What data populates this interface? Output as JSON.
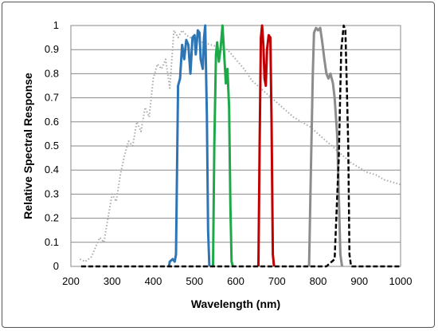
{
  "chart_data": {
    "type": "line",
    "title": "",
    "xlabel": "Wavelength (nm)",
    "ylabel": "Relative  Spectral Response",
    "xlim": [
      200,
      1000
    ],
    "ylim": [
      0,
      1
    ],
    "grid": "horizontal",
    "x_ticks": [
      "200",
      "300",
      "400",
      "500",
      "600",
      "700",
      "800",
      "900",
      "1000"
    ],
    "y_ticks": [
      "0",
      "0.1",
      "0.2",
      "0.3",
      "0.4",
      "0.5",
      "0.6",
      "0.7",
      "0.8",
      "0.9",
      "1"
    ],
    "series": [
      {
        "color": "#aaaaaa",
        "style": "dotted",
        "points": [
          [
            222,
            0.03
          ],
          [
            235,
            0.02
          ],
          [
            250,
            0.04
          ],
          [
            260,
            0.08
          ],
          [
            270,
            0.12
          ],
          [
            280,
            0.1
          ],
          [
            290,
            0.2
          ],
          [
            300,
            0.3
          ],
          [
            310,
            0.27
          ],
          [
            320,
            0.38
          ],
          [
            330,
            0.46
          ],
          [
            340,
            0.52
          ],
          [
            350,
            0.5
          ],
          [
            360,
            0.6
          ],
          [
            370,
            0.56
          ],
          [
            380,
            0.66
          ],
          [
            390,
            0.62
          ],
          [
            400,
            0.78
          ],
          [
            410,
            0.84
          ],
          [
            420,
            0.82
          ],
          [
            430,
            0.86
          ],
          [
            440,
            0.74
          ],
          [
            450,
            0.98
          ],
          [
            460,
            0.95
          ],
          [
            470,
            0.98
          ],
          [
            480,
            0.96
          ],
          [
            490,
            0.95
          ],
          [
            500,
            0.94
          ],
          [
            520,
            0.93
          ],
          [
            540,
            0.92
          ],
          [
            560,
            0.91
          ],
          [
            580,
            0.9
          ],
          [
            600,
            0.86
          ],
          [
            620,
            0.82
          ],
          [
            640,
            0.77
          ],
          [
            660,
            0.74
          ],
          [
            680,
            0.71
          ],
          [
            700,
            0.68
          ],
          [
            720,
            0.65
          ],
          [
            740,
            0.62
          ],
          [
            760,
            0.6
          ],
          [
            780,
            0.58
          ],
          [
            800,
            0.55
          ],
          [
            820,
            0.52
          ],
          [
            840,
            0.49
          ],
          [
            860,
            0.46
          ],
          [
            880,
            0.43
          ],
          [
            900,
            0.41
          ],
          [
            920,
            0.39
          ],
          [
            940,
            0.38
          ],
          [
            960,
            0.36
          ],
          [
            980,
            0.35
          ],
          [
            1000,
            0.34
          ]
        ]
      },
      {
        "color": "#2e75b6",
        "style": "solid",
        "points": [
          [
            438,
            0
          ],
          [
            440,
            0.02
          ],
          [
            447,
            0.03
          ],
          [
            452,
            0.02
          ],
          [
            455,
            0.05
          ],
          [
            460,
            0.75
          ],
          [
            465,
            0.78
          ],
          [
            470,
            0.92
          ],
          [
            475,
            0.86
          ],
          [
            480,
            0.94
          ],
          [
            485,
            0.92
          ],
          [
            490,
            0.8
          ],
          [
            495,
            0.95
          ],
          [
            500,
            0.96
          ],
          [
            503,
            0.88
          ],
          [
            508,
            0.98
          ],
          [
            512,
            0.97
          ],
          [
            515,
            0.86
          ],
          [
            520,
            0.82
          ],
          [
            523,
            0.95
          ],
          [
            526,
            1.0
          ],
          [
            530,
            0.62
          ],
          [
            533,
            0.15
          ],
          [
            536,
            0.0
          ]
        ]
      },
      {
        "color": "#1ea84a",
        "style": "solid",
        "points": [
          [
            545,
            0
          ],
          [
            548,
            0.5
          ],
          [
            552,
            0.88
          ],
          [
            555,
            0.93
          ],
          [
            559,
            0.85
          ],
          [
            563,
            0.9
          ],
          [
            568,
            1.0
          ],
          [
            572,
            0.88
          ],
          [
            576,
            0.76
          ],
          [
            580,
            0.82
          ],
          [
            584,
            0.66
          ],
          [
            587,
            0.25
          ],
          [
            590,
            0.02
          ],
          [
            593,
            0
          ]
        ]
      },
      {
        "color": "#c00000",
        "style": "solid",
        "points": [
          [
            655,
            0
          ],
          [
            658,
            0.5
          ],
          [
            661,
            0.95
          ],
          [
            664,
            1.0
          ],
          [
            667,
            0.92
          ],
          [
            670,
            0.78
          ],
          [
            673,
            0.75
          ],
          [
            676,
            0.9
          ],
          [
            680,
            0.96
          ],
          [
            684,
            0.95
          ],
          [
            687,
            0.6
          ],
          [
            690,
            0.05
          ],
          [
            693,
            0
          ]
        ]
      },
      {
        "color": "#8c8c8c",
        "style": "solid",
        "points": [
          [
            778,
            0
          ],
          [
            783,
            0.45
          ],
          [
            787,
            0.8
          ],
          [
            790,
            0.97
          ],
          [
            795,
            0.99
          ],
          [
            800,
            0.98
          ],
          [
            805,
            0.99
          ],
          [
            810,
            0.93
          ],
          [
            815,
            0.86
          ],
          [
            820,
            0.8
          ],
          [
            825,
            0.78
          ],
          [
            830,
            0.8
          ],
          [
            836,
            0.76
          ],
          [
            840,
            0.7
          ],
          [
            846,
            0.55
          ],
          [
            850,
            0.3
          ],
          [
            854,
            0.05
          ],
          [
            858,
            0
          ]
        ]
      },
      {
        "color": "#000000",
        "style": "dashed",
        "points": [
          [
            225,
            0
          ],
          [
            820,
            0
          ],
          [
            840,
            0.03
          ],
          [
            850,
            0.45
          ],
          [
            856,
            0.9
          ],
          [
            862,
            1.0
          ],
          [
            866,
            0.98
          ],
          [
            870,
            0.72
          ],
          [
            873,
            0.5
          ],
          [
            876,
            0.05
          ],
          [
            880,
            0
          ],
          [
            1000,
            0
          ]
        ]
      }
    ]
  }
}
